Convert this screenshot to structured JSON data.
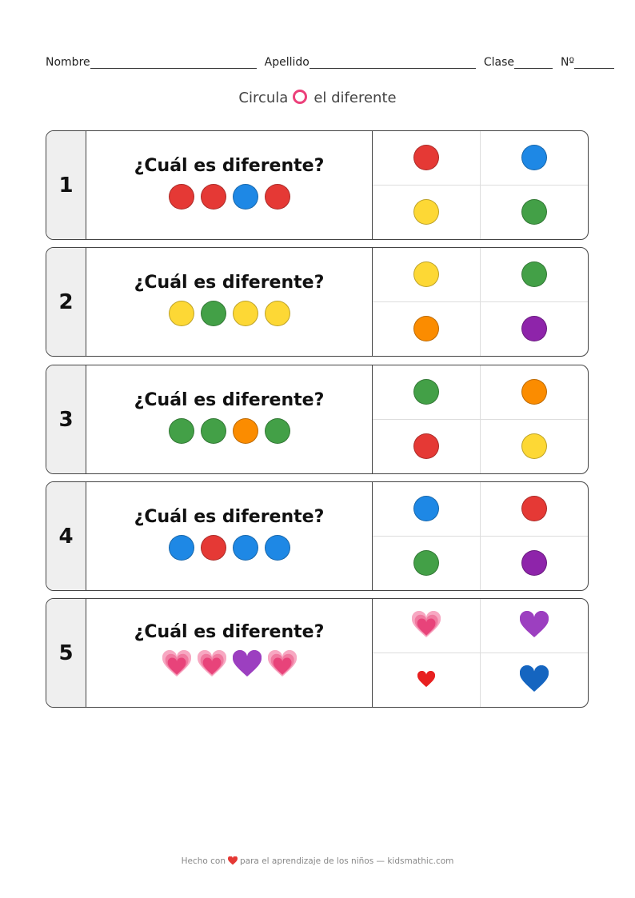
{
  "header": {
    "nombre_label": "Nombre",
    "apellido_label": "Apellido",
    "clase_label": "Clase",
    "numero_label": "Nº"
  },
  "instruction": {
    "before": "Circula",
    "after": "el diferente",
    "ring_color": "#ec407a"
  },
  "colors": {
    "red": "#e53935",
    "blue": "#1e88e5",
    "yellow": "#fdd835",
    "green": "#43a047",
    "orange": "#fb8c00",
    "purple": "#8e24aa",
    "pink_heart": "#e8437a",
    "purple_heart": "#9c3fc0",
    "red_heart": "#e82020",
    "blue_heart": "#1565c0"
  },
  "question_text": "¿Cuál es diferente?",
  "exercises": [
    {
      "number": "1",
      "sequence": [
        "red",
        "red",
        "blue",
        "red"
      ],
      "options": [
        "red",
        "blue",
        "yellow",
        "green"
      ]
    },
    {
      "number": "2",
      "sequence": [
        "yellow",
        "green",
        "yellow",
        "yellow"
      ],
      "options": [
        "yellow",
        "green",
        "orange",
        "purple"
      ]
    },
    {
      "number": "3",
      "sequence": [
        "green",
        "green",
        "orange",
        "green"
      ],
      "options": [
        "green",
        "orange",
        "red",
        "yellow"
      ]
    },
    {
      "number": "4",
      "sequence": [
        "blue",
        "red",
        "blue",
        "blue"
      ],
      "options": [
        "blue",
        "red",
        "green",
        "purple"
      ]
    },
    {
      "number": "5",
      "sequence": [
        "pink_heart",
        "pink_heart",
        "purple_heart",
        "pink_heart"
      ],
      "options": [
        "pink_heart",
        "purple_heart",
        "red_heart",
        "blue_heart"
      ]
    }
  ],
  "footer": {
    "before": "Hecho con",
    "after": "para el aprendizaje de los niños — kidsmathic.com",
    "heart_color": "#e53935"
  }
}
